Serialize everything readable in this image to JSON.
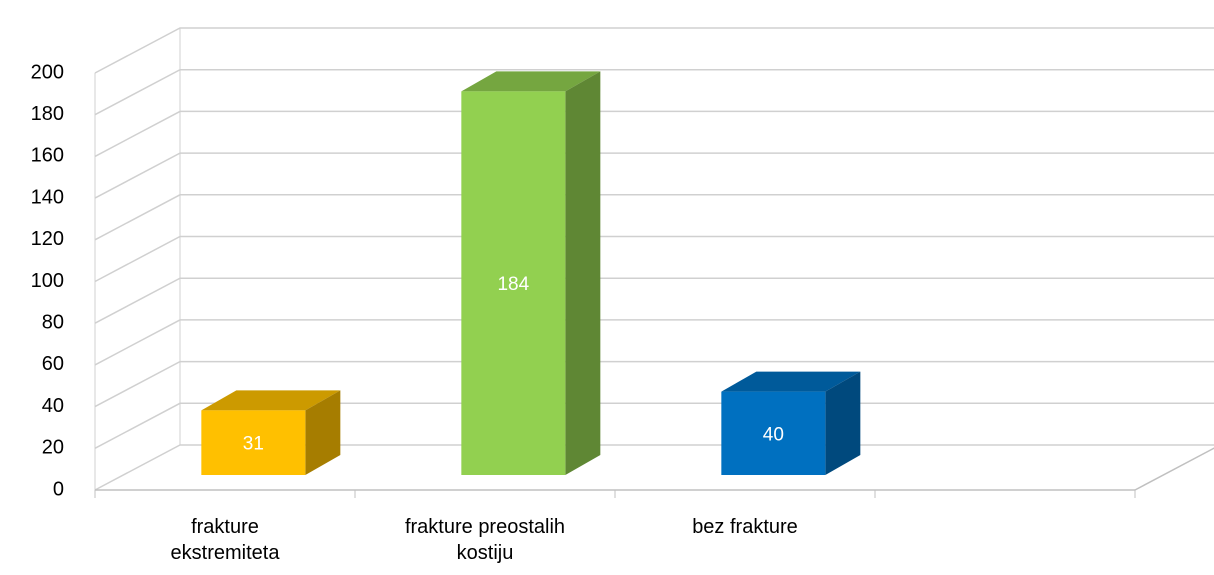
{
  "chart_data": {
    "type": "bar3d",
    "categories": [
      "frakture ekstremiteta",
      "frakture preostalih kostiju",
      "bez frakture",
      null
    ],
    "values": [
      31,
      184,
      40,
      null
    ],
    "colors": [
      "#ffc000",
      "#92d050",
      "#0070c0",
      null
    ],
    "ylim": [
      0,
      200
    ],
    "yticks": [
      0,
      20,
      40,
      60,
      80,
      100,
      120,
      140,
      160,
      180,
      200
    ],
    "grid": true
  }
}
